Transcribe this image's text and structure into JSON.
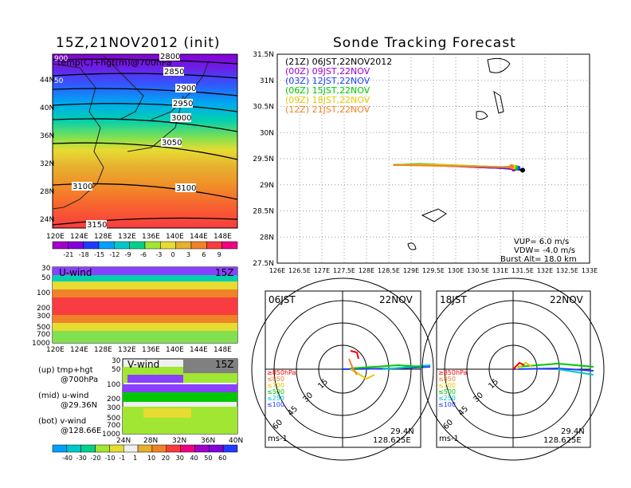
{
  "left_title": "15Z,21NOV2012 (init)",
  "right_title": "Sonde Tracking Forecast",
  "map_panel": {
    "label": "temp(C)+hgt(m)@700hPa",
    "lat_labels": [
      "44N",
      "40N",
      "36N",
      "32N",
      "28N",
      "24N"
    ],
    "lon_labels": [
      "120E",
      "124E",
      "128E",
      "132E",
      "136E",
      "140E",
      "144E",
      "148E"
    ],
    "contours": [
      "2800",
      "2850",
      "2900",
      "2950",
      "3000",
      "3050",
      "3100",
      "3100",
      "3150"
    ],
    "edge_labels": [
      "900",
      "50"
    ],
    "colorbar_labels": [
      "-21",
      "-18",
      "-15",
      "-12",
      "-9",
      "-6",
      "-3",
      "0",
      "3",
      "6",
      "9"
    ],
    "colorbar_colors": [
      "#a000c8",
      "#8200dc",
      "#1e3cff",
      "#00a0ff",
      "#00c8c8",
      "#00d28c",
      "#a0e632",
      "#e6dc32",
      "#e6af2d",
      "#f08228",
      "#fa3c3c",
      "#f00082"
    ]
  },
  "u_panel": {
    "label": "U-wind",
    "time": "15Z",
    "levels": [
      "30",
      "50",
      "100",
      "200",
      "300",
      "500",
      "700",
      "1000"
    ],
    "lon_labels": [
      "120E",
      "124E",
      "128E",
      "132E",
      "136E",
      "140E",
      "144E",
      "148E"
    ]
  },
  "v_panel": {
    "label": "V-wind",
    "time": "15Z",
    "levels": [
      "30",
      "50",
      "100",
      "200",
      "300",
      "500",
      "700",
      "1000"
    ],
    "lat_labels": [
      "24N",
      "28N",
      "32N",
      "36N",
      "40N"
    ]
  },
  "notes": {
    "up": "(up) tmp+hgt",
    "up2": "@700hPa",
    "mid": "(mid) u-wind",
    "mid2": "@29.36N",
    "bot": "(bot) v-wind",
    "bot2": "@128.66E"
  },
  "bottom_colorbar": {
    "labels": [
      "-40",
      "-30",
      "-20",
      "-10",
      "-1",
      "1",
      "10",
      "20",
      "30",
      "40",
      "50",
      "60"
    ],
    "colors": [
      "#00a0ff",
      "#00c8c8",
      "#00d28c",
      "#a0e632",
      "#e6dc32",
      "#f0f0f0",
      "#e6af2d",
      "#f08228",
      "#fa3c3c",
      "#f00082",
      "#a000c8",
      "#8200dc",
      "#1e3cff"
    ]
  },
  "track_panel": {
    "legend": [
      {
        "text": "(21Z) 06JST,22NOV2012",
        "color": "#000000"
      },
      {
        "text": "(00Z) 09JST,22NOV",
        "color": "#a000c8"
      },
      {
        "text": "(03Z) 12JST,22NOV",
        "color": "#1e3cff"
      },
      {
        "text": "(06Z) 15JST,22NOV",
        "color": "#00c800"
      },
      {
        "text": "(09Z) 18JST,22NOV",
        "color": "#e6c800"
      },
      {
        "text": "(12Z) 21JST,22NOV",
        "color": "#f08228"
      }
    ],
    "lat_labels": [
      "31.5N",
      "31N",
      "30.5N",
      "30N",
      "29.5N",
      "29N",
      "28.5N",
      "28N",
      "27.5N"
    ],
    "lon_labels": [
      "126E",
      "126.5E",
      "127E",
      "127.5E",
      "128E",
      "128.5E",
      "129E",
      "129.5E",
      "130E",
      "130.5E",
      "131E",
      "131.5E",
      "132E",
      "132.5E",
      "133E"
    ],
    "vup": "VUP=  6.0  m/s",
    "vdw": "VDW=  -4.0  m/s",
    "burst": "Burst Alt=  18.0  km"
  },
  "hodo_left": {
    "time": "06JST",
    "date": "22NOV",
    "rings": [
      "15",
      "30",
      "45",
      "60"
    ],
    "levels": [
      "≥850hPa",
      "≤850",
      "≤700",
      "≤500",
      "≤250",
      "≤100"
    ],
    "level_colors": [
      "#fa0000",
      "#f08228",
      "#e6c800",
      "#00c800",
      "#00c8c8",
      "#1e3cff"
    ],
    "unit": "ms-1",
    "lat": "29.4N",
    "lon": "128.625E"
  },
  "hodo_right": {
    "time": "18JST",
    "date": "22NOV",
    "rings": [
      "15",
      "30",
      "45",
      "60"
    ],
    "levels": [
      "≥850hPa",
      "≤850",
      "≤700",
      "≤500",
      "≤250",
      "≤100"
    ],
    "level_colors": [
      "#fa0000",
      "#f08228",
      "#e6c800",
      "#00c800",
      "#00c8c8",
      "#1e3cff"
    ],
    "unit": "ms-1",
    "lat": "29.4N",
    "lon": "128.625E"
  },
  "chart_data": {
    "type": "line",
    "title": "Sonde Tracking Forecast",
    "xlim": [
      126,
      133
    ],
    "ylim": [
      27.5,
      31.5
    ],
    "series": [
      {
        "name": "(21Z) 06JST,22NOV2012",
        "color": "#000000",
        "x": [
          128.6,
          129.2,
          129.8,
          130.4,
          131.0,
          131.3,
          131.5
        ],
        "y": [
          29.38,
          29.38,
          29.37,
          29.34,
          29.32,
          29.3,
          29.28
        ]
      },
      {
        "name": "(00Z) 09JST,22NOV",
        "color": "#a000c8",
        "x": [
          128.6,
          129.2,
          129.8,
          130.4,
          131.0,
          131.3
        ],
        "y": [
          29.38,
          29.38,
          29.36,
          29.34,
          29.32,
          29.3
        ]
      },
      {
        "name": "(03Z) 12JST,22NOV",
        "color": "#1e3cff",
        "x": [
          128.6,
          129.2,
          129.8,
          130.4,
          131.0,
          131.4
        ],
        "y": [
          29.38,
          29.39,
          29.37,
          29.35,
          29.33,
          29.32
        ]
      },
      {
        "name": "(06Z) 15JST,22NOV",
        "color": "#00c800",
        "x": [
          128.6,
          129.2,
          129.8,
          130.4,
          131.0,
          131.35
        ],
        "y": [
          29.38,
          29.4,
          29.38,
          29.36,
          29.34,
          29.33
        ]
      },
      {
        "name": "(09Z) 18JST,22NOV",
        "color": "#e6c800",
        "x": [
          128.6,
          129.2,
          129.8,
          130.4,
          131.0,
          131.3
        ],
        "y": [
          29.38,
          29.39,
          29.38,
          29.36,
          29.34,
          29.34
        ]
      },
      {
        "name": "(12Z) 21JST,22NOV",
        "color": "#f08228",
        "x": [
          128.6,
          129.2,
          129.8,
          130.4,
          131.0,
          131.25
        ],
        "y": [
          29.38,
          29.37,
          29.36,
          29.35,
          29.34,
          29.35
        ]
      }
    ]
  }
}
